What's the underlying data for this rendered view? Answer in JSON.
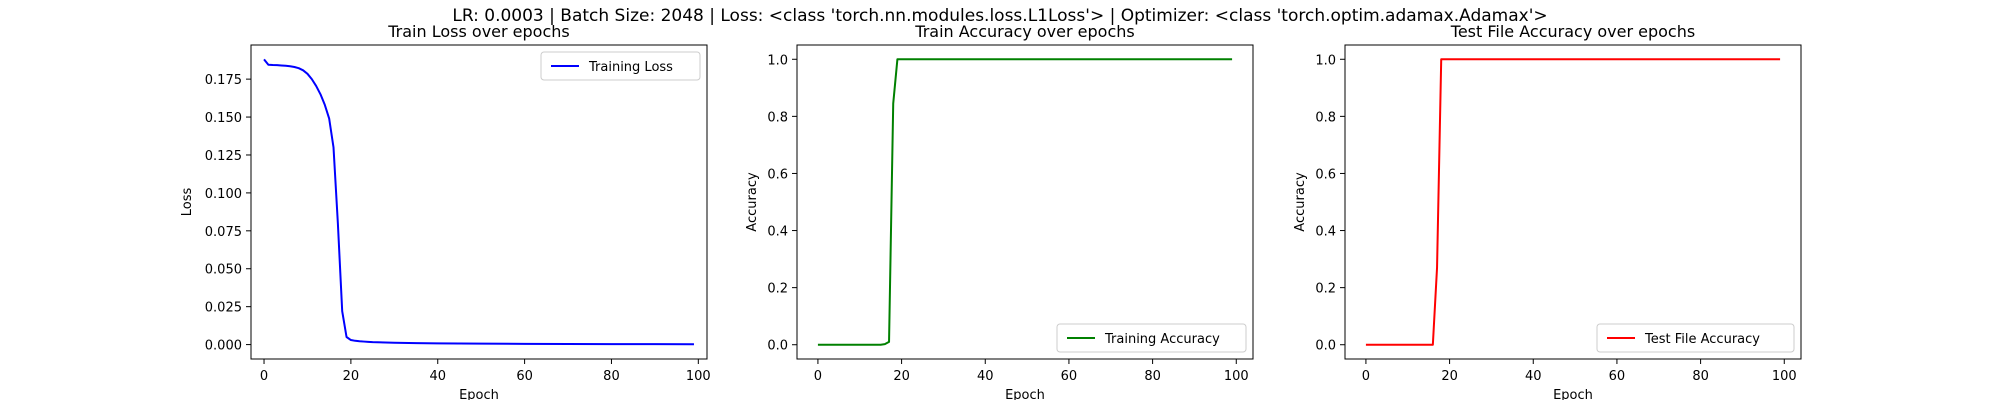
{
  "suptitle": "LR: 0.0003 | Batch Size: 2048 | Loss: <class 'torch.nn.modules.loss.L1Loss'> | Optimizer: <class 'torch.optim.adamax.Adamax'>",
  "chart_data": [
    {
      "type": "line",
      "title": "Train Loss over epochs",
      "xlabel": "Epoch",
      "ylabel": "Loss",
      "xlim": [
        -3,
        102
      ],
      "ylim": [
        -0.0095,
        0.1975
      ],
      "xticks": [
        0,
        20,
        40,
        60,
        80,
        100
      ],
      "xtick_labels": [
        "0",
        "20",
        "40",
        "60",
        "80",
        "100"
      ],
      "yticks": [
        0,
        0.025,
        0.05,
        0.075,
        0.1,
        0.125,
        0.15,
        0.175
      ],
      "ytick_labels": [
        "0.000",
        "0.025",
        "0.050",
        "0.075",
        "0.100",
        "0.125",
        "0.150",
        "0.175"
      ],
      "grid": false,
      "legend_position": "top-right",
      "series": [
        {
          "name": "Training Loss",
          "color": "#0000ff",
          "x": [
            0,
            1,
            2,
            3,
            4,
            5,
            6,
            7,
            8,
            9,
            10,
            11,
            12,
            13,
            14,
            15,
            16,
            17,
            18,
            19,
            20,
            21,
            22,
            23,
            24,
            25,
            30,
            35,
            40,
            50,
            60,
            70,
            80,
            90,
            99
          ],
          "y": [
            0.188,
            0.1845,
            0.1843,
            0.1842,
            0.184,
            0.1838,
            0.1835,
            0.183,
            0.1822,
            0.1808,
            0.1785,
            0.175,
            0.1705,
            0.165,
            0.158,
            0.149,
            0.13,
            0.08,
            0.022,
            0.005,
            0.003,
            0.0025,
            0.0022,
            0.002,
            0.0018,
            0.0016,
            0.0012,
            0.001,
            0.0008,
            0.0006,
            0.0005,
            0.0004,
            0.0003,
            0.0003,
            0.0002
          ]
        }
      ]
    },
    {
      "type": "line",
      "title": "Train Accuracy over epochs",
      "xlabel": "Epoch",
      "ylabel": "Accuracy",
      "xlim": [
        -5,
        104
      ],
      "ylim": [
        -0.05,
        1.05
      ],
      "xticks": [
        0,
        20,
        40,
        60,
        80,
        100
      ],
      "xtick_labels": [
        "0",
        "20",
        "40",
        "60",
        "80",
        "100"
      ],
      "yticks": [
        0,
        0.2,
        0.4,
        0.6,
        0.8,
        1.0
      ],
      "ytick_labels": [
        "0.0",
        "0.2",
        "0.4",
        "0.6",
        "0.8",
        "1.0"
      ],
      "grid": false,
      "legend_position": "bottom-right",
      "series": [
        {
          "name": "Training Accuracy",
          "color": "#008000",
          "x": [
            0,
            5,
            10,
            15,
            16,
            17,
            18,
            19,
            20,
            40,
            60,
            80,
            99
          ],
          "y": [
            0,
            0,
            0,
            0,
            0.002,
            0.01,
            0.845,
            1.0,
            1.0,
            1.0,
            1.0,
            1.0,
            1.0
          ]
        }
      ]
    },
    {
      "type": "line",
      "title": "Test File Accuracy over epochs",
      "xlabel": "Epoch",
      "ylabel": "Accuracy",
      "xlim": [
        -5,
        104
      ],
      "ylim": [
        -0.05,
        1.05
      ],
      "xticks": [
        0,
        20,
        40,
        60,
        80,
        100
      ],
      "xtick_labels": [
        "0",
        "20",
        "40",
        "60",
        "80",
        "100"
      ],
      "yticks": [
        0,
        0.2,
        0.4,
        0.6,
        0.8,
        1.0
      ],
      "ytick_labels": [
        "0.0",
        "0.2",
        "0.4",
        "0.6",
        "0.8",
        "1.0"
      ],
      "grid": false,
      "legend_position": "bottom-right",
      "series": [
        {
          "name": "Test File Accuracy",
          "color": "#ff0000",
          "x": [
            0,
            5,
            10,
            15,
            16,
            17,
            18,
            19,
            20,
            40,
            60,
            80,
            99
          ],
          "y": [
            0,
            0,
            0,
            0,
            0,
            0.27,
            1.0,
            1.0,
            1.0,
            1.0,
            1.0,
            1.0,
            1.0
          ]
        }
      ]
    }
  ]
}
